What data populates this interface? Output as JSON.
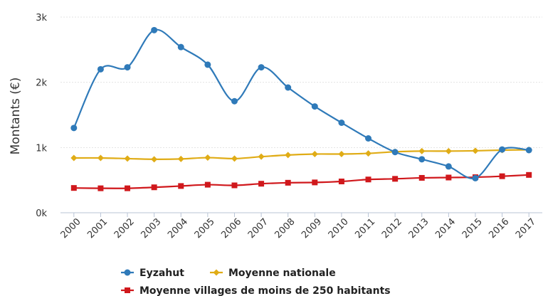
{
  "chart_data": {
    "type": "line",
    "title": "",
    "xlabel": "",
    "ylabel": "Montants (€)",
    "ylim": [
      0,
      3000
    ],
    "yticks": [
      {
        "value": 0,
        "label": "0k"
      },
      {
        "value": 1000,
        "label": "1k"
      },
      {
        "value": 2000,
        "label": "2k"
      },
      {
        "value": 3000,
        "label": "3k"
      }
    ],
    "categories": [
      "2000",
      "2001",
      "2002",
      "2003",
      "2004",
      "2005",
      "2006",
      "2007",
      "2008",
      "2009",
      "2010",
      "2011",
      "2012",
      "2013",
      "2014",
      "2015",
      "2016",
      "2017"
    ],
    "grid": true,
    "legend_position": "bottom",
    "series": [
      {
        "name": "Eyzahut",
        "color": "#2f7ab9",
        "marker": "circle",
        "values": [
          1300,
          2200,
          2230,
          2800,
          2540,
          2270,
          1710,
          2230,
          1920,
          1630,
          1380,
          1140,
          930,
          820,
          710,
          530,
          970,
          960
        ]
      },
      {
        "name": "Moyenne nationale",
        "color": "#e0ac16",
        "marker": "diamond",
        "values": [
          840,
          840,
          830,
          820,
          825,
          845,
          830,
          860,
          885,
          900,
          900,
          910,
          935,
          945,
          945,
          950,
          960,
          965
        ]
      },
      {
        "name": "Moyenne villages de moins de 250 habitants",
        "color": "#d0181c",
        "marker": "square",
        "values": [
          380,
          375,
          375,
          390,
          410,
          430,
          420,
          445,
          460,
          465,
          480,
          510,
          520,
          535,
          540,
          545,
          560,
          580
        ]
      }
    ]
  }
}
